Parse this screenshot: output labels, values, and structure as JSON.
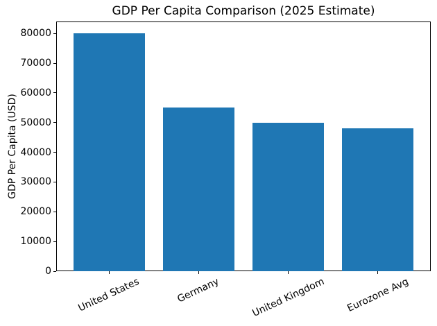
{
  "chart_data": {
    "type": "bar",
    "title": "GDP Per Capita Comparison (2025 Estimate)",
    "xlabel": "",
    "ylabel": "GDP Per Capita (USD)",
    "categories": [
      "United States",
      "Germany",
      "United Kingdom",
      "Eurozone Avg"
    ],
    "values": [
      80000,
      55000,
      50000,
      48000
    ],
    "yticks": [
      0,
      10000,
      20000,
      30000,
      40000,
      50000,
      60000,
      70000,
      80000
    ],
    "ylim": [
      0,
      84000
    ],
    "bar_color": "#1f77b4",
    "axis_color": "#000000",
    "background_color": "#ffffff",
    "x_tick_label_rotation_deg": 25,
    "grid": false,
    "legend": null
  }
}
